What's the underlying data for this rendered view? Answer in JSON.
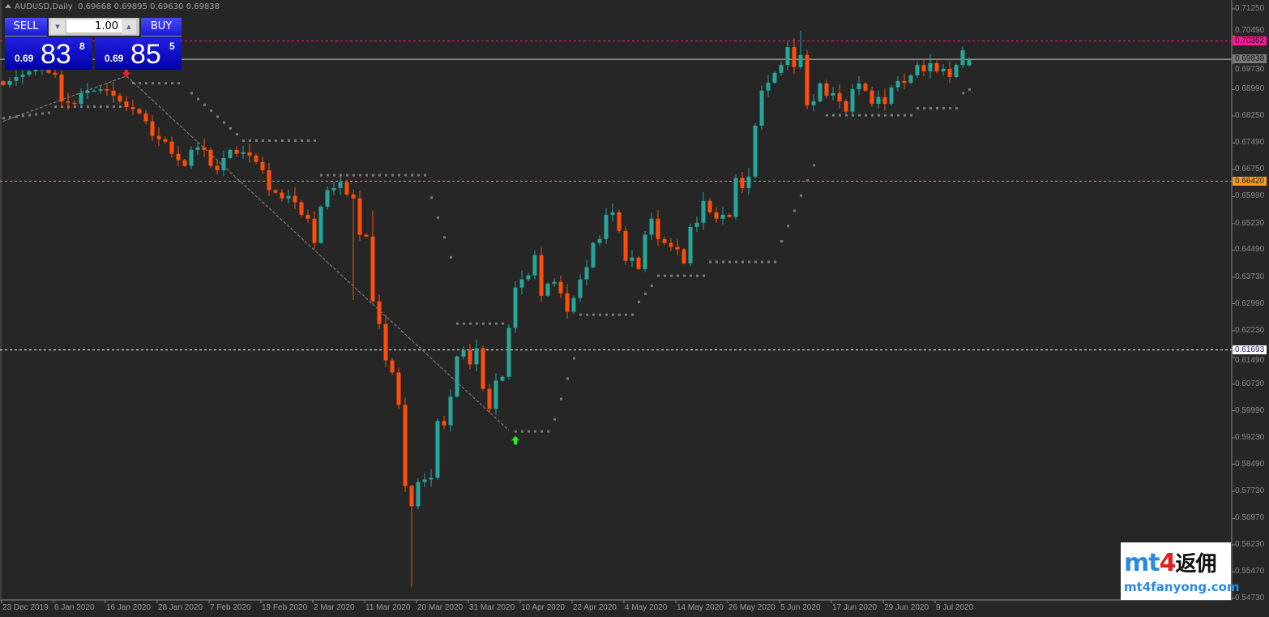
{
  "header": {
    "symbol": "AUDUSD,Daily",
    "ohlc": "0.69668 0.69895 0.69630 0.69838"
  },
  "trade_panel": {
    "sell_label": "SELL",
    "buy_label": "BUY",
    "lot_value": "1.00",
    "sell_price": {
      "prefix": "0.69",
      "big": "83",
      "pip": "8"
    },
    "buy_price": {
      "prefix": "0.69",
      "big": "85",
      "pip": "5"
    },
    "button_color": "#2a2ae8"
  },
  "watermark": {
    "line1_a": "mt",
    "line1_b": "4",
    "line1_c": "返佣",
    "line2": "mt4fanyong.com"
  },
  "chart_data": {
    "type": "candlestick",
    "symbol": "AUDUSD",
    "timeframe": "Daily",
    "ylim": [
      0.5473,
      0.7125
    ],
    "y_ticks": [
      "0.71250",
      "0.70490",
      "0.69730",
      "0.68990",
      "0.68250",
      "0.67490",
      "0.66750",
      "0.65990",
      "0.65230",
      "0.64490",
      "0.63730",
      "0.62990",
      "0.62230",
      "0.61490",
      "0.60730",
      "0.59990",
      "0.59230",
      "0.58490",
      "0.57730",
      "0.56970",
      "0.56230",
      "0.55470",
      "0.54730"
    ],
    "x_ticks": [
      "23 Dec 2019",
      "6 Jan 2020",
      "16 Jan 2020",
      "28 Jan 2020",
      "7 Feb 2020",
      "19 Feb 2020",
      "2 Mar 2020",
      "11 Mar 2020",
      "20 Mar 2020",
      "31 Mar 2020",
      "10 Apr 2020",
      "22 Apr 2020",
      "4 May 2020",
      "14 May 2020",
      "26 May 2020",
      "5 Jun 2020",
      "17 Jun 2020",
      "29 Jun 2020",
      "9 Jul 2020"
    ],
    "bars_per_tick": 8,
    "bull_color": "#26a69a",
    "bear_color": "#ff4d0a",
    "closes": [
      0.6912,
      0.6923,
      0.6934,
      0.6941,
      0.695,
      0.6957,
      0.6957,
      0.6946,
      0.6941,
      0.6866,
      0.6862,
      0.6859,
      0.6889,
      0.6896,
      0.6896,
      0.69,
      0.6896,
      0.6882,
      0.6866,
      0.685,
      0.6844,
      0.6832,
      0.681,
      0.6769,
      0.676,
      0.6753,
      0.6719,
      0.6701,
      0.6685,
      0.673,
      0.6737,
      0.673,
      0.6685,
      0.6673,
      0.6707,
      0.673,
      0.6719,
      0.6723,
      0.6714,
      0.6696,
      0.6673,
      0.6617,
      0.661,
      0.6594,
      0.6601,
      0.6583,
      0.6548,
      0.6537,
      0.6469,
      0.6571,
      0.6617,
      0.6623,
      0.6639,
      0.6605,
      0.6594,
      0.6492,
      0.6487,
      0.6306,
      0.6242,
      0.614,
      0.6106,
      0.6015,
      0.5788,
      0.5731,
      0.5799,
      0.5806,
      0.5811,
      0.597,
      0.5958,
      0.6038,
      0.6151,
      0.6169,
      0.6129,
      0.6174,
      0.606,
      0.6004,
      0.6083,
      0.6094,
      0.6231,
      0.6344,
      0.6367,
      0.6378,
      0.6435,
      0.6321,
      0.6355,
      0.636,
      0.6328,
      0.6276,
      0.6315,
      0.6367,
      0.6401,
      0.6469,
      0.648,
      0.6548,
      0.6555,
      0.6503,
      0.6419,
      0.6428,
      0.6396,
      0.6492,
      0.6537,
      0.648,
      0.6469,
      0.6458,
      0.6451,
      0.6412,
      0.6514,
      0.6526,
      0.6587,
      0.6555,
      0.6537,
      0.6548,
      0.6542,
      0.6651,
      0.6623,
      0.6655,
      0.6798,
      0.6896,
      0.6918,
      0.6946,
      0.6968,
      0.7018,
      0.6962,
      0.6996,
      0.6855,
      0.6866,
      0.6916,
      0.6882,
      0.6889,
      0.6866,
      0.6837,
      0.69,
      0.6916,
      0.6896,
      0.6859,
      0.6878,
      0.6859,
      0.6905,
      0.6923,
      0.6918,
      0.6939,
      0.6968,
      0.695,
      0.6973,
      0.695,
      0.6957,
      0.6934,
      0.6968,
      0.7009,
      0.6967
    ],
    "last_bar": {
      "open": 0.69668,
      "high": 0.69895,
      "low": 0.6963,
      "close": 0.69838
    },
    "wick_overrides": [
      {
        "bar": 63,
        "low": 0.5506
      },
      {
        "bar": 123,
        "high": 0.7064
      },
      {
        "bar": 54,
        "low": 0.6309
      },
      {
        "bar": 57,
        "high": 0.656
      }
    ],
    "sar_runs": [
      [
        0,
        7,
        0.682,
        0.6835
      ],
      [
        8,
        18,
        0.6852,
        0.6852
      ],
      [
        20,
        27,
        0.6918,
        0.6918
      ],
      [
        29,
        36,
        0.689,
        0.6775
      ],
      [
        37,
        48,
        0.6757,
        0.6757
      ],
      [
        49,
        65,
        0.666,
        0.666
      ],
      [
        66,
        69,
        0.6597,
        0.643
      ],
      [
        70,
        77,
        0.6244,
        0.6244
      ],
      [
        79,
        84,
        0.5942,
        0.5942
      ],
      [
        85,
        88,
        0.5976,
        0.6147
      ],
      [
        89,
        97,
        0.6269,
        0.6269
      ],
      [
        98,
        100,
        0.6305,
        0.635
      ],
      [
        101,
        108,
        0.6378,
        0.6378
      ],
      [
        109,
        119,
        0.6417,
        0.6417
      ],
      [
        120,
        125,
        0.6475,
        0.6688
      ],
      [
        127,
        140,
        0.6828,
        0.6828
      ],
      [
        141,
        147,
        0.6848,
        0.6848
      ],
      [
        148,
        149,
        0.689,
        0.69
      ]
    ],
    "trend_line": [
      [
        0,
        0.681
      ],
      [
        19,
        0.6937
      ],
      [
        78,
        0.5944
      ]
    ],
    "signals": [
      {
        "type": "sell-arrow",
        "bar": 19,
        "price": 0.694
      },
      {
        "type": "buy-arrow",
        "bar": 79,
        "price": 0.5922
      }
    ],
    "levels": [
      {
        "price_label": "0.70352",
        "price": 0.70352,
        "style": "dashed",
        "color": "#ff1493",
        "text_color": "#1a1a1a"
      },
      {
        "price_label": "0.69838",
        "price": 0.69838,
        "style": "solid",
        "color": "#c8c8c8",
        "tag_color": "#7a7a7a",
        "text_color": "#1a1a1a"
      },
      {
        "price_label": "0.66420",
        "price": 0.6642,
        "style": "dashed",
        "color": "#ff9a1a",
        "text_color": "#1a1a1a"
      },
      {
        "price_label": "0.61693",
        "price": 0.61693,
        "style": "dashed",
        "color": "#ffffff",
        "text_color": "#1a1a60"
      }
    ]
  }
}
